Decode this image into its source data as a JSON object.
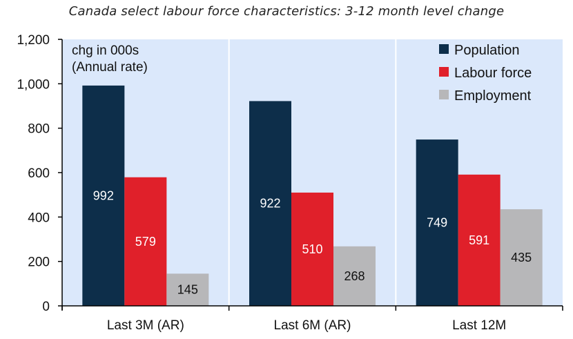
{
  "chart_data": {
    "type": "bar",
    "title": "Canada select labour force characteristics: 3-12 month level change",
    "note_lines": [
      "chg in 000s",
      "(Annual rate)"
    ],
    "categories": [
      "Last 3M (AR)",
      "Last 6M (AR)",
      "Last 12M"
    ],
    "series": [
      {
        "name": "Population",
        "values": [
          992,
          922,
          749
        ],
        "color": "#0d2e4a",
        "label_color": "#ffffff"
      },
      {
        "name": "Labour force",
        "values": [
          579,
          510,
          591
        ],
        "color": "#e0202a",
        "label_color": "#ffffff"
      },
      {
        "name": "Employment",
        "values": [
          145,
          268,
          435
        ],
        "color": "#b7b7b9",
        "label_color": "#111111"
      }
    ],
    "ylim": [
      0,
      1200
    ],
    "yticks": [
      0,
      200,
      400,
      600,
      800,
      1000,
      1200
    ],
    "ytick_labels": [
      "0",
      "200",
      "400",
      "600",
      "800",
      "1,000",
      "1,200"
    ],
    "legend_position": "top-right",
    "grid": "vertical category separators",
    "plot_background": "#dbe8fb"
  }
}
